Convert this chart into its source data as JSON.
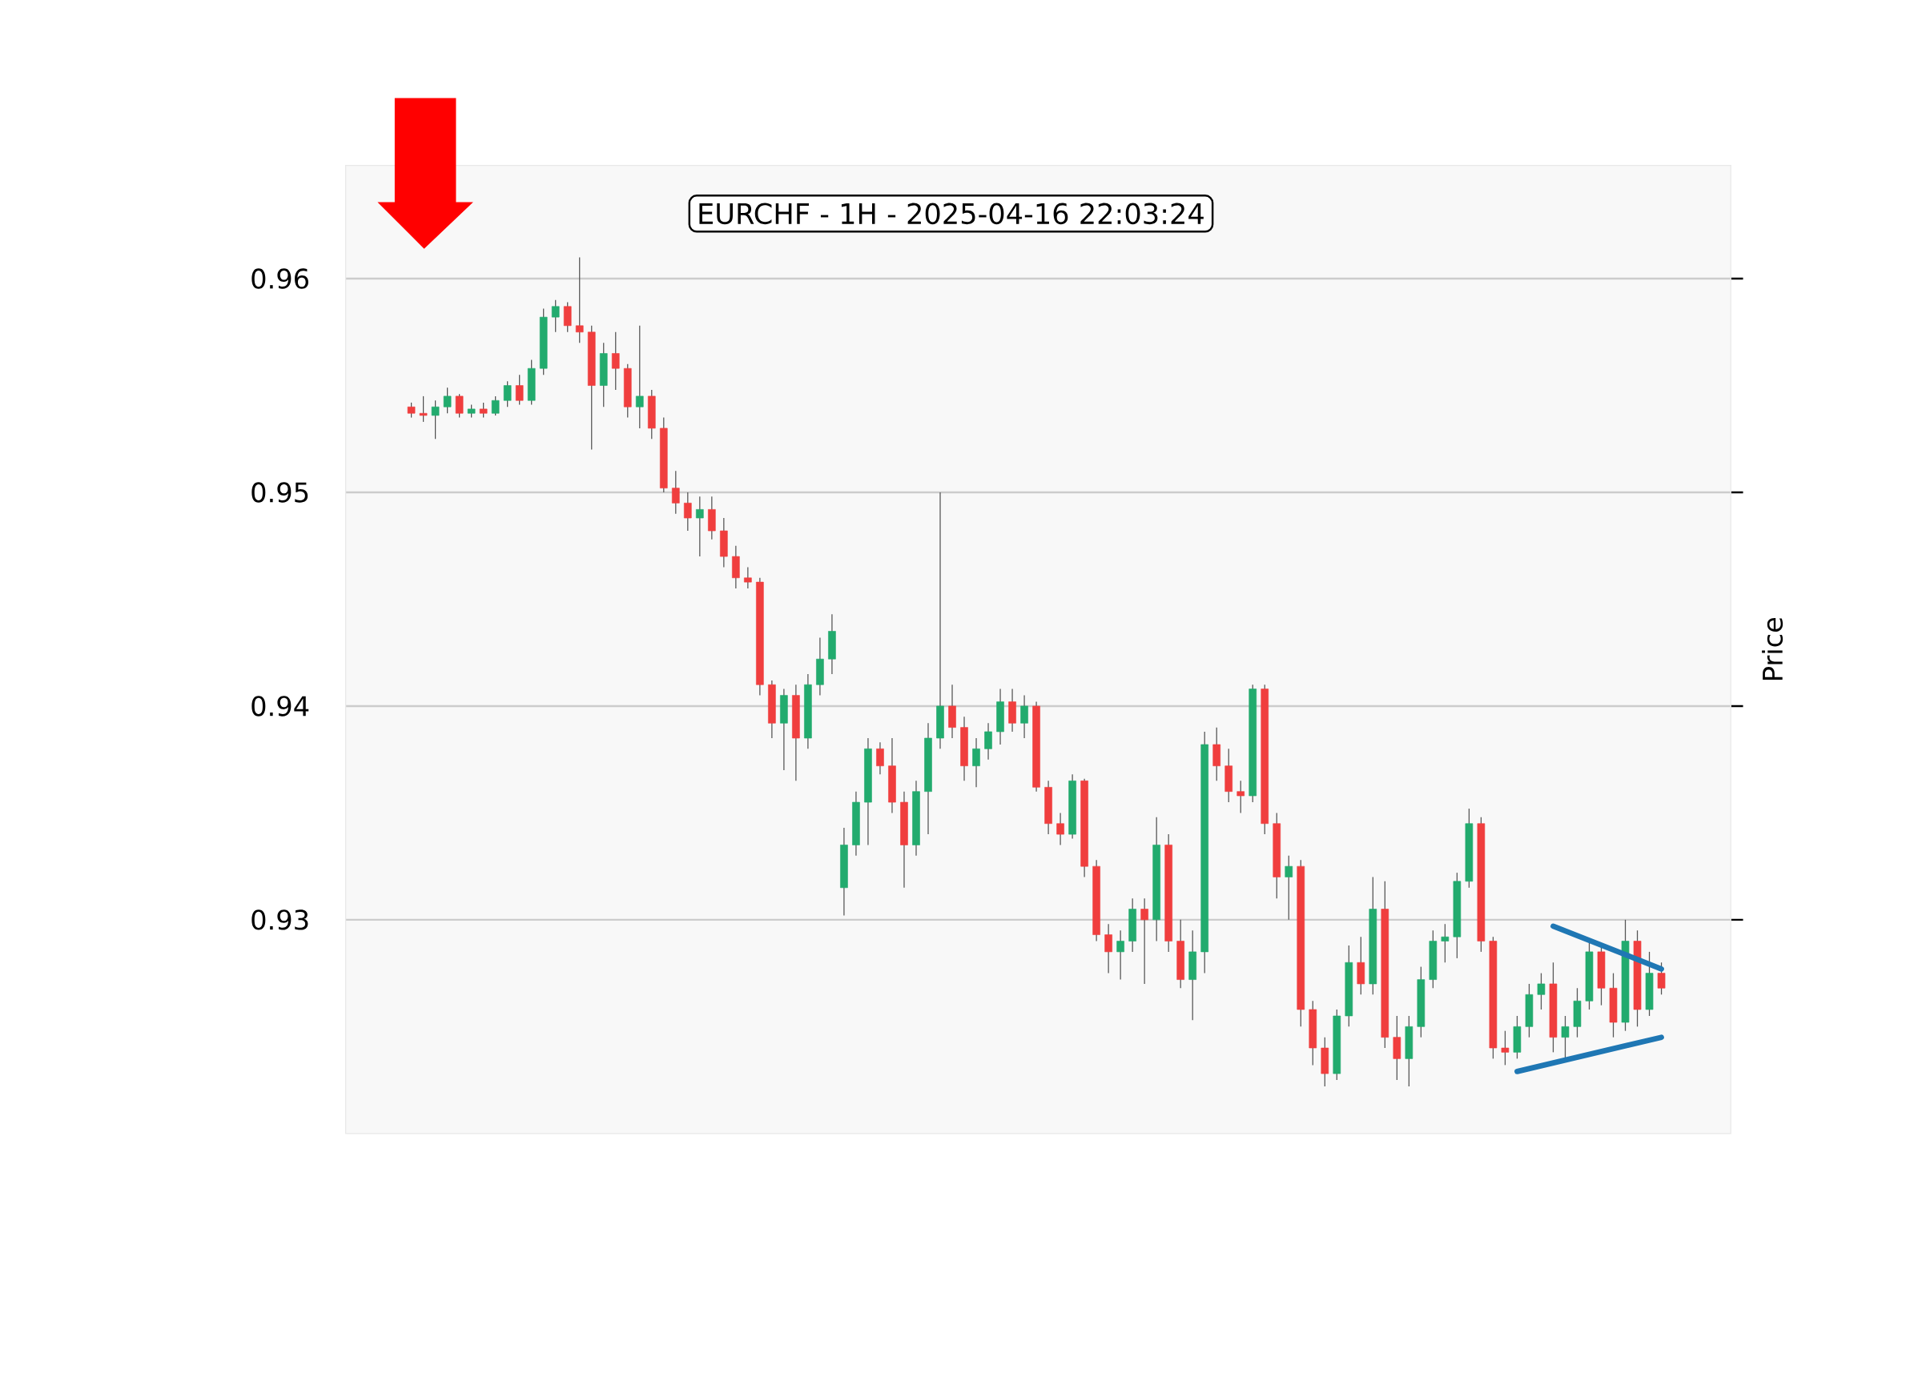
{
  "chart_data": {
    "type": "candlestick",
    "title": "EURCHF - 1H - 2025-04-16 22:03:24",
    "ylabel": "Price",
    "categories": [
      null,
      null,
      null,
      null,
      null,
      null,
      null,
      null,
      null,
      null,
      null,
      null,
      null,
      null,
      null,
      null,
      null,
      null,
      null,
      null,
      null,
      null,
      null,
      null,
      null,
      null,
      null,
      null,
      null,
      null,
      null,
      null,
      null,
      null,
      null,
      null,
      null,
      null,
      null,
      null,
      null,
      null,
      null,
      null,
      null,
      null,
      null,
      null,
      null,
      null,
      null,
      null,
      null,
      null,
      null,
      null,
      null,
      null,
      null,
      null,
      null,
      null,
      null,
      null,
      null,
      null,
      null,
      null,
      null,
      null,
      null,
      null,
      null,
      null,
      null,
      null,
      null,
      null,
      null,
      null,
      null,
      null,
      null,
      null,
      null,
      null,
      null,
      null,
      null,
      null,
      null,
      null,
      null,
      null,
      null,
      null,
      null,
      null,
      null,
      null,
      null,
      null,
      null,
      null,
      null
    ],
    "ohlc": [
      [
        0.954,
        0.9542,
        0.9535,
        0.9537
      ],
      [
        0.9537,
        0.9545,
        0.9533,
        0.9536
      ],
      [
        0.9536,
        0.9543,
        0.9525,
        0.954
      ],
      [
        0.954,
        0.9549,
        0.9537,
        0.9545
      ],
      [
        0.9545,
        0.9546,
        0.9535,
        0.9537
      ],
      [
        0.9537,
        0.9541,
        0.9535,
        0.9539
      ],
      [
        0.9539,
        0.9542,
        0.9535,
        0.9537
      ],
      [
        0.9537,
        0.9545,
        0.9536,
        0.9543
      ],
      [
        0.9543,
        0.9552,
        0.954,
        0.955
      ],
      [
        0.955,
        0.9555,
        0.9541,
        0.9543
      ],
      [
        0.9543,
        0.9562,
        0.9541,
        0.9558
      ],
      [
        0.9558,
        0.9586,
        0.9555,
        0.9582
      ],
      [
        0.9582,
        0.959,
        0.9575,
        0.9587
      ],
      [
        0.9587,
        0.9589,
        0.9575,
        0.9578
      ],
      [
        0.9578,
        0.961,
        0.957,
        0.9575
      ],
      [
        0.9575,
        0.9578,
        0.952,
        0.955
      ],
      [
        0.955,
        0.957,
        0.954,
        0.9565
      ],
      [
        0.9565,
        0.9575,
        0.9548,
        0.9558
      ],
      [
        0.9558,
        0.956,
        0.9535,
        0.954
      ],
      [
        0.954,
        0.9578,
        0.953,
        0.9545
      ],
      [
        0.9545,
        0.9548,
        0.9525,
        0.953
      ],
      [
        0.953,
        0.9535,
        0.95,
        0.9502
      ],
      [
        0.9502,
        0.951,
        0.949,
        0.9495
      ],
      [
        0.9495,
        0.95,
        0.9482,
        0.9488
      ],
      [
        0.9488,
        0.9498,
        0.947,
        0.9492
      ],
      [
        0.9492,
        0.9498,
        0.9478,
        0.9482
      ],
      [
        0.9482,
        0.9488,
        0.9465,
        0.947
      ],
      [
        0.947,
        0.9475,
        0.9455,
        0.946
      ],
      [
        0.946,
        0.9465,
        0.9455,
        0.9458
      ],
      [
        0.9458,
        0.946,
        0.9405,
        0.941
      ],
      [
        0.941,
        0.9412,
        0.9385,
        0.9392
      ],
      [
        0.9392,
        0.9408,
        0.937,
        0.9405
      ],
      [
        0.9405,
        0.941,
        0.9365,
        0.9385
      ],
      [
        0.9385,
        0.9415,
        0.938,
        0.941
      ],
      [
        0.941,
        0.9432,
        0.9405,
        0.9422
      ],
      [
        0.9422,
        0.9443,
        0.9415,
        0.9435
      ],
      [
        0.9315,
        0.9343,
        0.9302,
        0.9335
      ],
      [
        0.9335,
        0.936,
        0.933,
        0.9355
      ],
      [
        0.9355,
        0.9385,
        0.9335,
        0.938
      ],
      [
        0.938,
        0.9383,
        0.9368,
        0.9372
      ],
      [
        0.9372,
        0.9385,
        0.935,
        0.9355
      ],
      [
        0.9355,
        0.936,
        0.9315,
        0.9335
      ],
      [
        0.9335,
        0.9365,
        0.933,
        0.936
      ],
      [
        0.936,
        0.9392,
        0.934,
        0.9385
      ],
      [
        0.9385,
        0.95,
        0.938,
        0.94
      ],
      [
        0.94,
        0.941,
        0.9385,
        0.939
      ],
      [
        0.939,
        0.9395,
        0.9365,
        0.9372
      ],
      [
        0.9372,
        0.9385,
        0.9362,
        0.938
      ],
      [
        0.938,
        0.9392,
        0.9375,
        0.9388
      ],
      [
        0.9388,
        0.9408,
        0.9382,
        0.9402
      ],
      [
        0.9402,
        0.9408,
        0.9388,
        0.9392
      ],
      [
        0.9392,
        0.9405,
        0.9385,
        0.94
      ],
      [
        0.94,
        0.9402,
        0.936,
        0.9362
      ],
      [
        0.9362,
        0.9365,
        0.934,
        0.9345
      ],
      [
        0.9345,
        0.935,
        0.9335,
        0.934
      ],
      [
        0.934,
        0.9368,
        0.9338,
        0.9365
      ],
      [
        0.9365,
        0.9366,
        0.932,
        0.9325
      ],
      [
        0.9325,
        0.9328,
        0.929,
        0.9293
      ],
      [
        0.9293,
        0.9298,
        0.9275,
        0.9285
      ],
      [
        0.9285,
        0.9295,
        0.9272,
        0.929
      ],
      [
        0.929,
        0.931,
        0.9285,
        0.9305
      ],
      [
        0.9305,
        0.931,
        0.927,
        0.93
      ],
      [
        0.93,
        0.9348,
        0.929,
        0.9335
      ],
      [
        0.9335,
        0.934,
        0.9285,
        0.929
      ],
      [
        0.929,
        0.93,
        0.9268,
        0.9272
      ],
      [
        0.9272,
        0.9295,
        0.9253,
        0.9285
      ],
      [
        0.9285,
        0.9388,
        0.9275,
        0.9382
      ],
      [
        0.9382,
        0.939,
        0.9365,
        0.9372
      ],
      [
        0.9372,
        0.938,
        0.9355,
        0.936
      ],
      [
        0.936,
        0.9365,
        0.935,
        0.9358
      ],
      [
        0.9358,
        0.941,
        0.9355,
        0.9408
      ],
      [
        0.9408,
        0.941,
        0.934,
        0.9345
      ],
      [
        0.9345,
        0.935,
        0.931,
        0.932
      ],
      [
        0.932,
        0.933,
        0.93,
        0.9325
      ],
      [
        0.9325,
        0.9328,
        0.925,
        0.9258
      ],
      [
        0.9258,
        0.9262,
        0.9232,
        0.924
      ],
      [
        0.924,
        0.9245,
        0.9222,
        0.9228
      ],
      [
        0.9228,
        0.9258,
        0.9225,
        0.9255
      ],
      [
        0.9255,
        0.9288,
        0.925,
        0.928
      ],
      [
        0.928,
        0.9292,
        0.9265,
        0.927
      ],
      [
        0.927,
        0.932,
        0.9265,
        0.9305
      ],
      [
        0.9305,
        0.9318,
        0.924,
        0.9245
      ],
      [
        0.9245,
        0.9255,
        0.9225,
        0.9235
      ],
      [
        0.9235,
        0.9255,
        0.9222,
        0.925
      ],
      [
        0.925,
        0.9278,
        0.9245,
        0.9272
      ],
      [
        0.9272,
        0.9295,
        0.9268,
        0.929
      ],
      [
        0.929,
        0.9298,
        0.928,
        0.9292
      ],
      [
        0.9292,
        0.9322,
        0.9282,
        0.9318
      ],
      [
        0.9318,
        0.9352,
        0.9315,
        0.9345
      ],
      [
        0.9345,
        0.9348,
        0.9285,
        0.929
      ],
      [
        0.929,
        0.9292,
        0.9235,
        0.924
      ],
      [
        0.924,
        0.9248,
        0.9232,
        0.9238
      ],
      [
        0.9238,
        0.9255,
        0.9235,
        0.925
      ],
      [
        0.925,
        0.927,
        0.9245,
        0.9265
      ],
      [
        0.9265,
        0.9275,
        0.9258,
        0.927
      ],
      [
        0.927,
        0.928,
        0.9238,
        0.9245
      ],
      [
        0.9245,
        0.9255,
        0.9235,
        0.925
      ],
      [
        0.925,
        0.9268,
        0.9245,
        0.9262
      ],
      [
        0.9262,
        0.929,
        0.9258,
        0.9285
      ],
      [
        0.9285,
        0.9288,
        0.926,
        0.9268
      ],
      [
        0.9268,
        0.9275,
        0.9245,
        0.9252
      ],
      [
        0.9252,
        0.93,
        0.9248,
        0.929
      ],
      [
        0.929,
        0.9295,
        0.925,
        0.9258
      ],
      [
        0.9258,
        0.9285,
        0.9255,
        0.9275
      ],
      [
        0.9275,
        0.928,
        0.9265,
        0.9268
      ]
    ],
    "colors": [
      "#f03e3e",
      "#f03e3e",
      "#22ab6e",
      "#22ab6e",
      "#f03e3e",
      "#22ab6e",
      "#f03e3e",
      "#22ab6e",
      "#22ab6e",
      "#f03e3e",
      "#22ab6e",
      "#22ab6e",
      "#22ab6e",
      "#f03e3e",
      "#f03e3e",
      "#f03e3e",
      "#22ab6e",
      "#f03e3e",
      "#f03e3e",
      "#22ab6e",
      "#f03e3e",
      "#f03e3e",
      "#f03e3e",
      "#f03e3e",
      "#22ab6e",
      "#f03e3e",
      "#f03e3e",
      "#f03e3e",
      "#f03e3e",
      "#f03e3e",
      "#f03e3e",
      "#22ab6e",
      "#f03e3e",
      "#22ab6e",
      "#22ab6e",
      "#22ab6e",
      "#22ab6e",
      "#22ab6e",
      "#22ab6e",
      "#f03e3e",
      "#f03e3e",
      "#f03e3e",
      "#22ab6e",
      "#22ab6e",
      "#22ab6e",
      "#f03e3e",
      "#f03e3e",
      "#22ab6e",
      "#22ab6e",
      "#22ab6e",
      "#f03e3e",
      "#22ab6e",
      "#f03e3e",
      "#f03e3e",
      "#f03e3e",
      "#22ab6e",
      "#f03e3e",
      "#f03e3e",
      "#f03e3e",
      "#22ab6e",
      "#22ab6e",
      "#f03e3e",
      "#22ab6e",
      "#f03e3e",
      "#f03e3e",
      "#22ab6e",
      "#22ab6e",
      "#f03e3e",
      "#f03e3e",
      "#f03e3e",
      "#22ab6e",
      "#f03e3e",
      "#f03e3e",
      "#22ab6e",
      "#f03e3e",
      "#f03e3e",
      "#f03e3e",
      "#22ab6e",
      "#22ab6e",
      "#f03e3e",
      "#22ab6e",
      "#f03e3e",
      "#f03e3e",
      "#22ab6e",
      "#22ab6e",
      "#22ab6e",
      "#22ab6e",
      "#22ab6e",
      "#22ab6e",
      "#f03e3e",
      "#f03e3e",
      "#f03e3e",
      "#22ab6e",
      "#22ab6e",
      "#22ab6e",
      "#f03e3e",
      "#22ab6e",
      "#22ab6e",
      "#22ab6e",
      "#f03e3e",
      "#f03e3e",
      "#22ab6e",
      "#f03e3e",
      "#22ab6e",
      "#f03e3e"
    ],
    "series": [
      {
        "type": "line",
        "color": "#1f77b4",
        "values": [
          null,
          null,
          null,
          null,
          null,
          null,
          null,
          null,
          null,
          null,
          null,
          null,
          null,
          null,
          null,
          null,
          null,
          null,
          null,
          null,
          null,
          null,
          null,
          null,
          null,
          null,
          null,
          null,
          null,
          null,
          null,
          null,
          null,
          null,
          null,
          null,
          null,
          null,
          null,
          null,
          null,
          null,
          null,
          null,
          null,
          null,
          null,
          null,
          null,
          null,
          null,
          null,
          null,
          null,
          null,
          null,
          null,
          null,
          null,
          null,
          null,
          null,
          null,
          null,
          null,
          null,
          null,
          null,
          null,
          null,
          null,
          null,
          null,
          null,
          null,
          null,
          null,
          null,
          null,
          null,
          null,
          null,
          null,
          null,
          null,
          null,
          null,
          null,
          null,
          null,
          null,
          null,
          null,
          null,
          null,
          0.9297,
          null,
          null,
          null,
          null,
          null,
          null,
          null,
          null,
          0.9277
        ]
      },
      {
        "type": "line",
        "color": "#1f77b4",
        "values": [
          null,
          null,
          null,
          null,
          null,
          null,
          null,
          null,
          null,
          null,
          null,
          null,
          null,
          null,
          null,
          null,
          null,
          null,
          null,
          null,
          null,
          null,
          null,
          null,
          null,
          null,
          null,
          null,
          null,
          null,
          null,
          null,
          null,
          null,
          null,
          null,
          null,
          null,
          null,
          null,
          null,
          null,
          null,
          null,
          null,
          null,
          null,
          null,
          null,
          null,
          null,
          null,
          null,
          null,
          null,
          null,
          null,
          null,
          null,
          null,
          null,
          null,
          null,
          null,
          null,
          null,
          null,
          null,
          null,
          null,
          null,
          null,
          null,
          null,
          null,
          null,
          null,
          null,
          null,
          null,
          null,
          null,
          null,
          null,
          null,
          null,
          null,
          null,
          null,
          null,
          null,
          null,
          0.9229,
          null,
          null,
          null,
          null,
          null,
          null,
          null,
          null,
          null,
          null,
          null,
          0.9245
        ]
      }
    ],
    "ylim": [
      0.92,
      0.9653
    ],
    "yticks": [
      0.93,
      0.94,
      0.95,
      0.96
    ],
    "grid": "y"
  }
}
